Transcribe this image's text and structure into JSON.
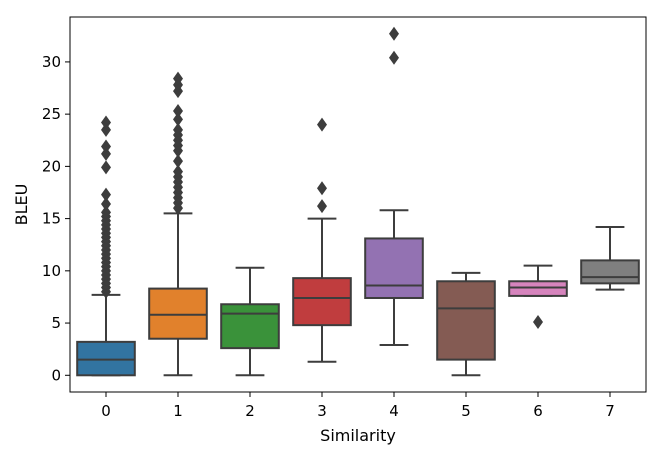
{
  "chart_data": {
    "type": "box",
    "title": "",
    "xlabel": "Similarity",
    "ylabel": "BLEU",
    "ylim": [
      -1.6,
      34.3
    ],
    "yticks": [
      0,
      5,
      10,
      15,
      20,
      25,
      30
    ],
    "categories": [
      "0",
      "1",
      "2",
      "3",
      "4",
      "5",
      "6",
      "7"
    ],
    "boxes": [
      {
        "category": "0",
        "color": "#3274a1",
        "whisker_low": 0,
        "q1": 0,
        "median": 1.5,
        "q3": 3.2,
        "whisker_high": 7.7,
        "outliers": [
          8.0,
          8.4,
          8.8,
          9.2,
          9.6,
          10.0,
          10.4,
          10.8,
          11.2,
          11.6,
          12.0,
          12.4,
          12.8,
          13.2,
          13.6,
          14.0,
          14.4,
          14.8,
          15.2,
          15.6,
          16.4,
          17.3,
          19.9,
          21.2,
          21.9,
          23.5,
          24.2
        ]
      },
      {
        "category": "1",
        "color": "#e1812c",
        "whisker_low": 0,
        "q1": 3.5,
        "median": 5.8,
        "q3": 8.3,
        "whisker_high": 15.5,
        "outliers": [
          16.0,
          16.5,
          17.0,
          17.5,
          18.0,
          18.5,
          19.0,
          19.5,
          20.5,
          21.5,
          22.0,
          22.5,
          23.0,
          23.5,
          24.5,
          25.3,
          27.2,
          27.8,
          28.4
        ]
      },
      {
        "category": "2",
        "color": "#3a923a",
        "whisker_low": 0,
        "q1": 2.6,
        "median": 5.9,
        "q3": 6.8,
        "whisker_high": 10.3,
        "outliers": []
      },
      {
        "category": "3",
        "color": "#c03d3e",
        "whisker_low": 1.3,
        "q1": 4.8,
        "median": 7.4,
        "q3": 9.3,
        "whisker_high": 15.0,
        "outliers": [
          16.2,
          17.9,
          24.0
        ]
      },
      {
        "category": "4",
        "color": "#9372b2",
        "whisker_low": 2.9,
        "q1": 7.4,
        "median": 8.6,
        "q3": 13.1,
        "whisker_high": 15.8,
        "outliers": [
          30.4,
          32.7
        ]
      },
      {
        "category": "5",
        "color": "#845b53",
        "whisker_low": 0,
        "q1": 1.5,
        "median": 6.4,
        "q3": 9.0,
        "whisker_high": 9.8,
        "outliers": []
      },
      {
        "category": "6",
        "color": "#d684bd",
        "whisker_low": 7.6,
        "q1": 7.6,
        "median": 8.4,
        "q3": 9.0,
        "whisker_high": 10.5,
        "outliers": [
          5.1
        ]
      },
      {
        "category": "7",
        "color": "#7f7f7f",
        "whisker_low": 8.2,
        "q1": 8.8,
        "median": 9.4,
        "q3": 11.0,
        "whisker_high": 14.2,
        "outliers": []
      }
    ],
    "style": {
      "line_color": "#3d3d3d"
    }
  }
}
